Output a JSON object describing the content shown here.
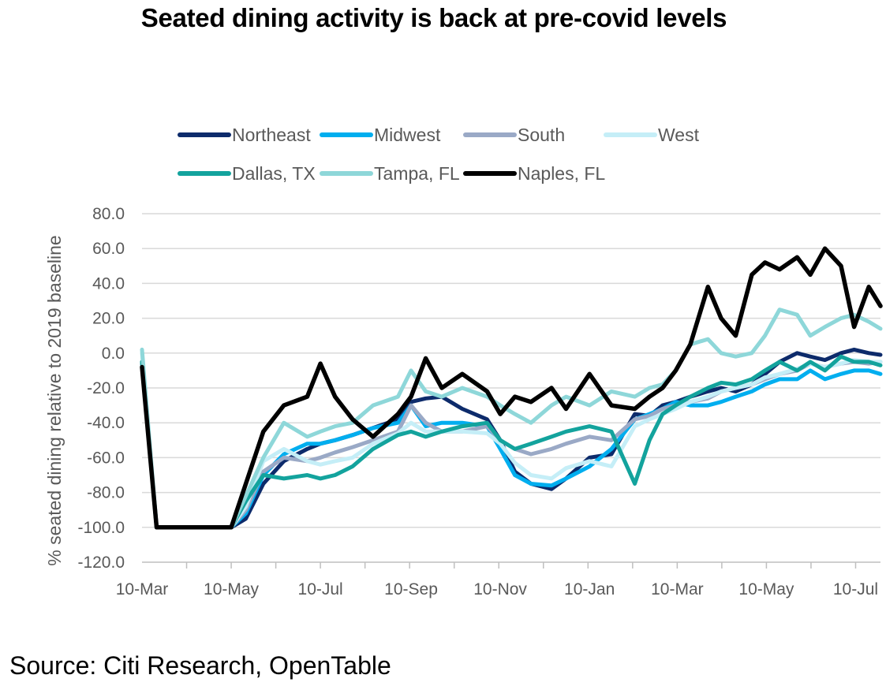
{
  "chart_data": {
    "type": "line",
    "title": "Seated dining activity is back at pre-covid levels",
    "ylabel": "% seated dining relative to 2019 baseline",
    "xlabel": "",
    "ylim": [
      -120,
      80
    ],
    "y_ticks": [
      "80.0",
      "60.0",
      "40.0",
      "20.0",
      "0.0",
      "-20.0",
      "-40.0",
      "-60.0",
      "-80.0",
      "-100.0",
      "-120.0"
    ],
    "x_tick_labels": [
      "10-Mar",
      "10-May",
      "10-Jul",
      "10-Sep",
      "10-Nov",
      "10-Jan",
      "10-Mar",
      "10-May",
      "10-Jul"
    ],
    "x_tick_index": [
      0,
      61,
      122,
      184,
      245,
      306,
      366,
      427,
      488
    ],
    "x": [
      "2020-03-10",
      "2020-03-20",
      "2020-04-01",
      "2020-04-20",
      "2020-05-01",
      "2020-05-10",
      "2020-05-20",
      "2020-06-01",
      "2020-06-15",
      "2020-07-01",
      "2020-07-10",
      "2020-07-20",
      "2020-08-01",
      "2020-08-15",
      "2020-09-01",
      "2020-09-10",
      "2020-09-20",
      "2020-10-01",
      "2020-10-15",
      "2020-11-01",
      "2020-11-10",
      "2020-11-20",
      "2020-12-01",
      "2020-12-15",
      "2020-12-25",
      "2021-01-10",
      "2021-01-25",
      "2021-02-10",
      "2021-02-20",
      "2021-03-01",
      "2021-03-10",
      "2021-03-20",
      "2021-04-01",
      "2021-04-10",
      "2021-04-20",
      "2021-05-01",
      "2021-05-10",
      "2021-05-20",
      "2021-06-01",
      "2021-06-10",
      "2021-06-20",
      "2021-07-01",
      "2021-07-10",
      "2021-07-20",
      "2021-07-28"
    ],
    "grid": "horizontal",
    "legend_position": "top",
    "series": [
      {
        "name": "Northeast",
        "color": "#0d2b6b",
        "width": 5,
        "values": [
          -5,
          -100,
          -100,
          -100,
          -100,
          -100,
          -95,
          -75,
          -62,
          -55,
          -52,
          -50,
          -47,
          -43,
          -38,
          -28,
          -26,
          -25,
          -32,
          -38,
          -50,
          -68,
          -75,
          -78,
          -72,
          -60,
          -58,
          -35,
          -36,
          -30,
          -28,
          -25,
          -22,
          -20,
          -22,
          -18,
          -12,
          -5,
          0,
          -2,
          -4,
          0,
          2,
          0,
          -1
        ]
      },
      {
        "name": "Midwest",
        "color": "#00aeef",
        "width": 5,
        "values": [
          -5,
          -100,
          -100,
          -100,
          -100,
          -100,
          -92,
          -70,
          -58,
          -52,
          -52,
          -50,
          -47,
          -43,
          -40,
          -30,
          -42,
          -40,
          -40,
          -42,
          -55,
          -70,
          -75,
          -76,
          -72,
          -65,
          -55,
          -38,
          -35,
          -32,
          -28,
          -30,
          -30,
          -28,
          -25,
          -22,
          -18,
          -15,
          -15,
          -10,
          -15,
          -12,
          -10,
          -10,
          -12
        ]
      },
      {
        "name": "South",
        "color": "#9aa9c6",
        "width": 5,
        "values": [
          -5,
          -100,
          -100,
          -100,
          -100,
          -100,
          -90,
          -68,
          -60,
          -62,
          -60,
          -57,
          -54,
          -50,
          -45,
          -30,
          -40,
          -45,
          -45,
          -42,
          -50,
          -55,
          -58,
          -55,
          -52,
          -48,
          -50,
          -38,
          -36,
          -32,
          -30,
          -28,
          -26,
          -22,
          -20,
          -18,
          -15,
          -12,
          -10,
          -6,
          -8,
          -6,
          -5,
          -6,
          -5
        ]
      },
      {
        "name": "West",
        "color": "#c5eef7",
        "width": 5,
        "values": [
          0,
          -100,
          -100,
          -100,
          -100,
          -100,
          -88,
          -62,
          -55,
          -62,
          -64,
          -62,
          -60,
          -52,
          -46,
          -40,
          -45,
          -45,
          -45,
          -46,
          -52,
          -63,
          -70,
          -72,
          -66,
          -62,
          -65,
          -42,
          -38,
          -35,
          -32,
          -28,
          -25,
          -22,
          -20,
          -18,
          -14,
          -12,
          -9,
          -6,
          -8,
          -6,
          -4,
          -5,
          -5
        ]
      },
      {
        "name": "Dallas, TX",
        "color": "#13a39d",
        "width": 5,
        "values": [
          -5,
          -100,
          -100,
          -100,
          -100,
          -100,
          -85,
          -70,
          -72,
          -70,
          -72,
          -70,
          -65,
          -55,
          -47,
          -45,
          -48,
          -45,
          -42,
          -40,
          -50,
          -55,
          -52,
          -48,
          -45,
          -42,
          -45,
          -75,
          -50,
          -35,
          -30,
          -25,
          -20,
          -17,
          -18,
          -15,
          -10,
          -5,
          -10,
          -5,
          -10,
          -2,
          -5,
          -5,
          -7
        ]
      },
      {
        "name": "Tampa, FL",
        "color": "#8ed7d9",
        "width": 5,
        "values": [
          2,
          -100,
          -100,
          -100,
          -100,
          -100,
          -82,
          -60,
          -40,
          -48,
          -45,
          -42,
          -40,
          -30,
          -25,
          -10,
          -22,
          -25,
          -20,
          -25,
          -30,
          -35,
          -40,
          -30,
          -25,
          -30,
          -22,
          -25,
          -20,
          -18,
          -10,
          5,
          8,
          0,
          -2,
          0,
          10,
          25,
          22,
          10,
          15,
          20,
          22,
          18,
          14
        ]
      },
      {
        "name": "Naples, FL",
        "color": "#000000",
        "width": 5.5,
        "values": [
          -8,
          -100,
          -100,
          -100,
          -100,
          -100,
          -75,
          -45,
          -30,
          -25,
          -6,
          -25,
          -38,
          -48,
          -35,
          -25,
          -3,
          -20,
          -12,
          -22,
          -35,
          -25,
          -28,
          -20,
          -32,
          -12,
          -30,
          -32,
          -25,
          -20,
          -10,
          5,
          38,
          20,
          10,
          45,
          52,
          48,
          55,
          45,
          60,
          50,
          15,
          38,
          27
        ]
      }
    ]
  },
  "source": "Source: Citi Research, OpenTable"
}
